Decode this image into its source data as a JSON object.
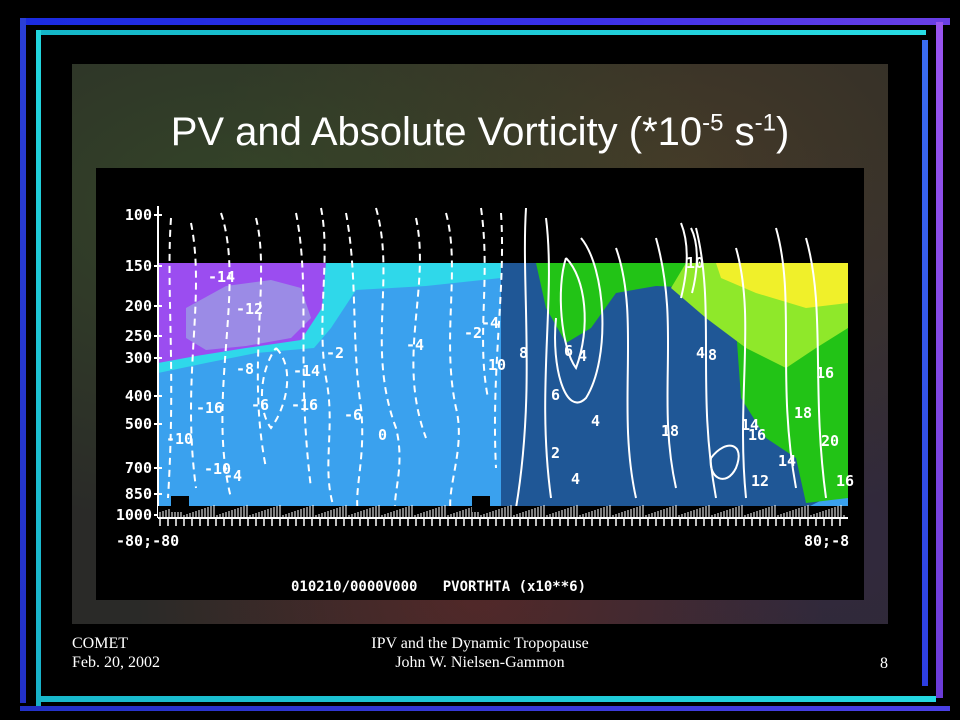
{
  "slide": {
    "title_main": "PV and Absolute Vorticity (*10",
    "title_exp1": "-5",
    "title_mid": " s",
    "title_exp2": "-1",
    "title_end": ")",
    "footer_left_line1": "COMET",
    "footer_left_line2": "Feb. 20, 2002",
    "footer_center_line1": "IPV and the Dynamic Tropopause",
    "footer_center_line2": "John W. Nielsen-Gammon",
    "page_number": "8"
  },
  "figure": {
    "pressure_levels": [
      "100",
      "150",
      "200",
      "250",
      "300",
      "400",
      "500",
      "700",
      "850",
      "1000"
    ],
    "x_label_left": "-80;-80",
    "x_label_right": "80;-8",
    "caption": "010210/0000V000   PVORTHTA (x10**6)",
    "contour_labels": [
      "-14",
      "-12",
      "-8",
      "-16",
      "-10",
      "-14",
      "-16",
      "-6",
      "-10",
      "-4",
      "-6",
      "-2",
      "-4",
      "0",
      "-2",
      "10",
      "8",
      "6",
      "4",
      "6",
      "4",
      "2",
      "4",
      "10",
      "8",
      "4",
      "18",
      "14",
      "16",
      "18",
      "14",
      "12",
      "16",
      "20",
      "16",
      "-4"
    ]
  },
  "colors": {
    "accent_blue": "#2a3fd6",
    "accent_cyan": "#22d6de",
    "accent_purple": "#9a55f0",
    "fill_purple": "#9b4df0",
    "fill_lavender": "#9b8be6",
    "fill_cyan": "#2fd8ea",
    "fill_light_blue": "#3aa1ee",
    "fill_dark_blue": "#1f5796",
    "fill_green": "#22c316",
    "fill_lime": "#8fe82a",
    "fill_yellow": "#f0f02a"
  }
}
